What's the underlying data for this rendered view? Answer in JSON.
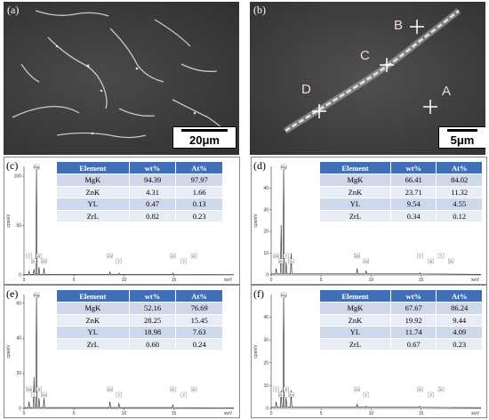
{
  "panels": {
    "a": {
      "label": "(a)",
      "scale": "20μm"
    },
    "b": {
      "label": "(b)",
      "scale": "5μm",
      "points": [
        "A",
        "B",
        "C",
        "D"
      ]
    },
    "c": {
      "label": "(c)"
    },
    "d": {
      "label": "(d)"
    },
    "e": {
      "label": "(e)"
    },
    "f": {
      "label": "(f)"
    }
  },
  "table_headers": [
    "Element",
    "wt%",
    "At%"
  ],
  "tables": {
    "c": [
      [
        "MgK",
        "94.39",
        "97.97"
      ],
      [
        "ZnK",
        "4.31",
        "1.66"
      ],
      [
        "YL",
        "0.47",
        "0.13"
      ],
      [
        "ZrL",
        "0.82",
        "0.23"
      ]
    ],
    "d": [
      [
        "MgK",
        "66.41",
        "84.02"
      ],
      [
        "ZnK",
        "23.71",
        "11.32"
      ],
      [
        "YL",
        "9.54",
        "4.55"
      ],
      [
        "ZrL",
        "0.34",
        "0.12"
      ]
    ],
    "e": [
      [
        "MgK",
        "52.16",
        "76.69"
      ],
      [
        "ZnK",
        "28.25",
        "15.45"
      ],
      [
        "YL",
        "18.98",
        "7.63"
      ],
      [
        "ZrL",
        "0.60",
        "0.24"
      ]
    ],
    "f": [
      [
        "MgK",
        "67.67",
        "86.24"
      ],
      [
        "ZnK",
        "19.92",
        "9.44"
      ],
      [
        "YL",
        "11.74",
        "4.09"
      ],
      [
        "ZrL",
        "0.67",
        "0.23"
      ]
    ]
  },
  "chart_data": [
    {
      "type": "line",
      "panel": "c",
      "ylabel": "cps/eV",
      "xlabel": "keV",
      "x_ticks": [
        "0",
        "5",
        "10",
        "15"
      ],
      "y_ticks": [
        "0",
        "50",
        "100"
      ],
      "ylim": [
        0,
        110
      ],
      "xlim": [
        0,
        21
      ],
      "peaks": [
        {
          "x": 0.5,
          "y": 4
        },
        {
          "x": 1.0,
          "y": 6
        },
        {
          "x": 1.25,
          "y": 110
        },
        {
          "x": 1.5,
          "y": 8
        },
        {
          "x": 2.0,
          "y": 7
        },
        {
          "x": 8.6,
          "y": 3
        },
        {
          "x": 9.5,
          "y": 2
        },
        {
          "x": 14.9,
          "y": 2
        }
      ],
      "peak_labels": [
        "Mg",
        "Y",
        "Zn",
        "Zr",
        "Zn",
        "Zn",
        "Y",
        "Zr",
        "Y",
        "Zr"
      ]
    },
    {
      "type": "line",
      "panel": "d",
      "ylabel": "cps/eV",
      "xlabel": "keV",
      "x_ticks": [
        "0",
        "5",
        "10",
        "15"
      ],
      "y_ticks": [
        "0",
        "10",
        "20",
        "30",
        "40"
      ],
      "ylim": [
        0,
        50
      ],
      "xlim": [
        0,
        21
      ],
      "peaks": [
        {
          "x": 0.5,
          "y": 3
        },
        {
          "x": 1.0,
          "y": 23
        },
        {
          "x": 1.25,
          "y": 50
        },
        {
          "x": 1.5,
          "y": 6
        },
        {
          "x": 2.0,
          "y": 10
        },
        {
          "x": 8.6,
          "y": 3
        },
        {
          "x": 9.5,
          "y": 2
        },
        {
          "x": 14.9,
          "y": 1
        }
      ],
      "peak_labels": [
        "Mg",
        "Zn",
        "Zn",
        "Y",
        "Zr",
        "Zn",
        "Zn",
        "Y",
        "Zr",
        "Y",
        "Zr"
      ]
    },
    {
      "type": "line",
      "panel": "e",
      "ylabel": "cps/eV",
      "xlabel": "keV",
      "x_ticks": [
        "0",
        "5",
        "10",
        "15"
      ],
      "y_ticks": [
        "0",
        "20",
        "40",
        "60"
      ],
      "ylim": [
        0,
        65
      ],
      "xlim": [
        0,
        21
      ],
      "peaks": [
        {
          "x": 0.5,
          "y": 4
        },
        {
          "x": 1.0,
          "y": 18
        },
        {
          "x": 1.25,
          "y": 65
        },
        {
          "x": 1.5,
          "y": 6
        },
        {
          "x": 2.0,
          "y": 6
        },
        {
          "x": 8.6,
          "y": 4
        },
        {
          "x": 9.5,
          "y": 3
        },
        {
          "x": 14.9,
          "y": 2
        }
      ],
      "peak_labels": [
        "Mg",
        "Zn",
        "Y",
        "Zr",
        "Zn",
        "Zn",
        "Y",
        "Zr",
        "Y",
        "Zr"
      ]
    },
    {
      "type": "line",
      "panel": "f",
      "ylabel": "cps/eV",
      "xlabel": "keV",
      "x_ticks": [
        "0",
        "5",
        "10",
        "15"
      ],
      "y_ticks": [
        "0",
        "10",
        "20",
        "30",
        "40"
      ],
      "ylim": [
        0,
        50
      ],
      "xlim": [
        0,
        21
      ],
      "peaks": [
        {
          "x": 0.5,
          "y": 3
        },
        {
          "x": 1.0,
          "y": 8
        },
        {
          "x": 1.25,
          "y": 50
        },
        {
          "x": 1.5,
          "y": 5
        },
        {
          "x": 2.0,
          "y": 8
        },
        {
          "x": 8.6,
          "y": 2
        },
        {
          "x": 9.5,
          "y": 1
        },
        {
          "x": 14.9,
          "y": 1
        }
      ],
      "peak_labels": [
        "Mg",
        "Y",
        "Zn",
        "Zr",
        "Zn",
        "Zn",
        "Y",
        "Zr",
        "Y",
        "Zr"
      ]
    }
  ]
}
